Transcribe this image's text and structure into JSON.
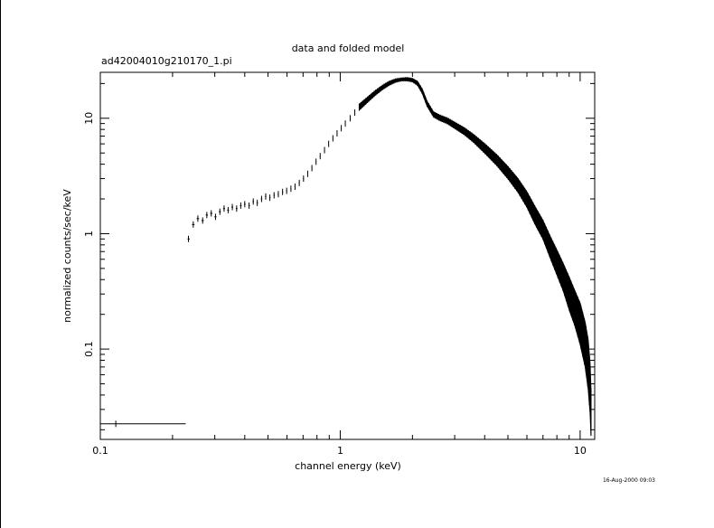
{
  "chart_data": {
    "type": "scatter",
    "title": "data and folded model",
    "subtitle": "ad42004010g210170_1.pi",
    "xlabel": "channel energy (keV)",
    "ylabel": "normalized counts/sec/keV",
    "x_scale": "log",
    "y_scale": "log",
    "xlim": [
      0.1,
      11.5
    ],
    "ylim": [
      0.0165,
      25
    ],
    "xticks": [
      {
        "value": 0.1,
        "label": "0.1"
      },
      {
        "value": 1,
        "label": "1"
      },
      {
        "value": 10,
        "label": "10"
      }
    ],
    "yticks": [
      {
        "value": 0.1,
        "label": "0.1"
      },
      {
        "value": 1,
        "label": "1"
      },
      {
        "value": 10,
        "label": "10"
      }
    ],
    "grid": false,
    "timestamp": "16-Aug-2000 09:03",
    "color": "#000000",
    "series": [
      {
        "points": [
          [
            0.116,
            0.0225,
            0.1,
            0.227
          ],
          [
            0.233,
            0.9,
            0.231,
            0.236
          ],
          [
            0.244,
            1.2,
            0.241,
            0.247
          ],
          [
            0.255,
            1.35,
            0.252,
            0.258
          ],
          [
            0.267,
            1.3,
            0.264,
            0.27
          ],
          [
            0.278,
            1.45,
            0.275,
            0.281
          ],
          [
            0.29,
            1.5,
            0.287,
            0.293
          ],
          [
            0.302,
            1.4,
            0.299,
            0.305
          ],
          [
            0.315,
            1.55,
            0.312,
            0.318
          ],
          [
            0.328,
            1.65,
            0.325,
            0.331
          ],
          [
            0.341,
            1.6,
            0.338,
            0.344
          ],
          [
            0.355,
            1.7,
            0.352,
            0.358
          ],
          [
            0.37,
            1.65,
            0.367,
            0.373
          ],
          [
            0.385,
            1.75,
            0.382,
            0.388
          ],
          [
            0.4,
            1.8,
            0.397,
            0.403
          ],
          [
            0.417,
            1.75,
            0.414,
            0.42
          ],
          [
            0.434,
            1.9,
            0.431,
            0.437
          ],
          [
            0.451,
            1.85,
            0.448,
            0.454
          ],
          [
            0.47,
            2.0,
            0.467,
            0.473
          ],
          [
            0.489,
            2.1,
            0.486,
            0.492
          ],
          [
            0.509,
            2.05,
            0.506,
            0.512
          ],
          [
            0.53,
            2.15,
            0.527,
            0.533
          ],
          [
            0.552,
            2.2,
            0.549,
            0.555
          ],
          [
            0.575,
            2.3,
            0.572,
            0.578
          ],
          [
            0.598,
            2.35,
            0.595,
            0.601
          ],
          [
            0.623,
            2.45,
            0.62,
            0.626
          ],
          [
            0.648,
            2.55,
            0.645,
            0.651
          ],
          [
            0.675,
            2.75,
            0.672,
            0.678
          ],
          [
            0.703,
            3.0,
            0.7,
            0.706
          ],
          [
            0.732,
            3.3,
            0.729,
            0.735
          ],
          [
            0.762,
            3.7,
            0.759,
            0.765
          ],
          [
            0.793,
            4.2,
            0.79,
            0.796
          ],
          [
            0.825,
            4.7,
            0.822,
            0.828
          ],
          [
            0.86,
            5.3,
            0.857,
            0.863
          ],
          [
            0.895,
            6.0,
            0.892,
            0.898
          ],
          [
            0.932,
            6.7,
            0.929,
            0.935
          ],
          [
            0.97,
            7.4,
            0.967,
            0.973
          ],
          [
            1.01,
            8.2,
            1.007,
            1.013
          ],
          [
            1.05,
            9.0,
            1.047,
            1.053
          ],
          [
            1.1,
            10.0,
            1.097,
            1.103
          ],
          [
            1.15,
            11.2,
            1.147,
            1.153
          ],
          [
            1.2,
            12.5,
            1.197,
            1.203
          ]
        ],
        "upper_envelope": [
          [
            1.2,
            13.2
          ],
          [
            1.3,
            15.2
          ],
          [
            1.4,
            17.3
          ],
          [
            1.5,
            19.2
          ],
          [
            1.6,
            20.8
          ],
          [
            1.7,
            21.8
          ],
          [
            1.8,
            22.2
          ],
          [
            1.9,
            22.4
          ],
          [
            2.0,
            22.0
          ],
          [
            2.1,
            20.8
          ],
          [
            2.2,
            17.8
          ],
          [
            2.3,
            14.0
          ],
          [
            2.45,
            11.3
          ],
          [
            2.6,
            10.6
          ],
          [
            2.8,
            10.0
          ],
          [
            3.0,
            9.2
          ],
          [
            3.3,
            8.2
          ],
          [
            3.6,
            7.2
          ],
          [
            4.0,
            6.0
          ],
          [
            4.5,
            4.8
          ],
          [
            5.0,
            3.8
          ],
          [
            5.5,
            3.0
          ],
          [
            6.0,
            2.3
          ],
          [
            6.5,
            1.7
          ],
          [
            7.0,
            1.3
          ],
          [
            7.5,
            0.95
          ],
          [
            8.0,
            0.72
          ],
          [
            8.5,
            0.55
          ],
          [
            9.0,
            0.42
          ],
          [
            9.5,
            0.32
          ],
          [
            10.0,
            0.25
          ],
          [
            10.5,
            0.17
          ],
          [
            10.8,
            0.12
          ],
          [
            11.0,
            0.075
          ],
          [
            11.1,
            0.045
          ]
        ],
        "lower_envelope": [
          [
            1.2,
            11.8
          ],
          [
            1.3,
            13.8
          ],
          [
            1.4,
            15.9
          ],
          [
            1.5,
            17.8
          ],
          [
            1.6,
            19.4
          ],
          [
            1.7,
            20.6
          ],
          [
            1.8,
            21.2
          ],
          [
            1.9,
            21.2
          ],
          [
            2.0,
            20.8
          ],
          [
            2.1,
            19.4
          ],
          [
            2.2,
            16.4
          ],
          [
            2.3,
            12.8
          ],
          [
            2.45,
            10.3
          ],
          [
            2.6,
            9.6
          ],
          [
            2.8,
            9.0
          ],
          [
            3.0,
            8.2
          ],
          [
            3.3,
            7.2
          ],
          [
            3.6,
            6.2
          ],
          [
            4.0,
            5.0
          ],
          [
            4.5,
            3.9
          ],
          [
            5.0,
            3.0
          ],
          [
            5.5,
            2.3
          ],
          [
            6.0,
            1.7
          ],
          [
            6.5,
            1.2
          ],
          [
            7.0,
            0.9
          ],
          [
            7.5,
            0.62
          ],
          [
            8.0,
            0.44
          ],
          [
            8.5,
            0.32
          ],
          [
            9.0,
            0.22
          ],
          [
            9.5,
            0.16
          ],
          [
            10.0,
            0.11
          ],
          [
            10.5,
            0.07
          ],
          [
            10.8,
            0.045
          ],
          [
            11.0,
            0.028
          ],
          [
            11.1,
            0.018
          ]
        ]
      }
    ]
  }
}
